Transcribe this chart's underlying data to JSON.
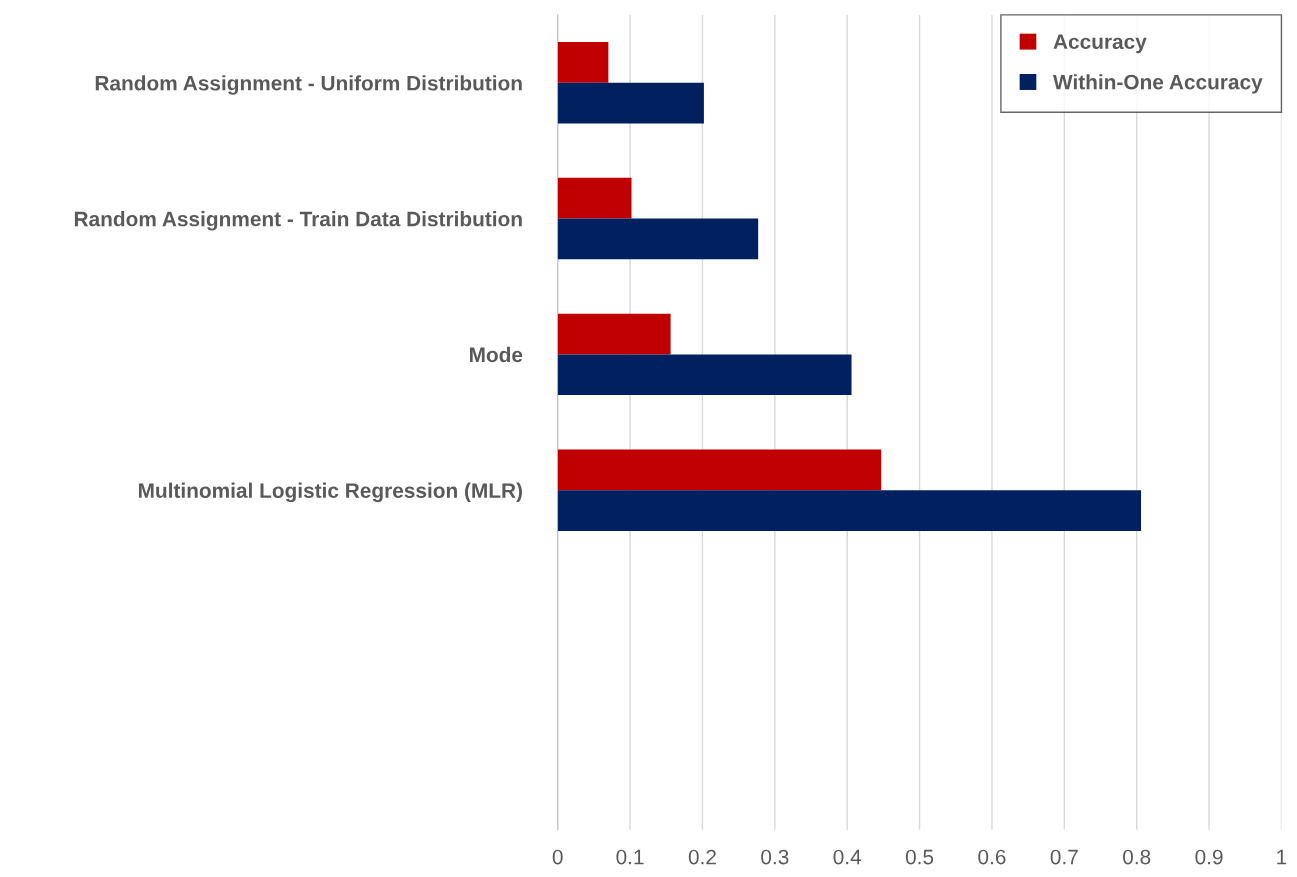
{
  "chart_data": {
    "type": "bar",
    "orientation": "horizontal",
    "categories": [
      "Random Assignment - Uniform Distribution",
      "Random Assignment - Train Data Distribution",
      "Mode",
      "Multinomial Logistic Regression (MLR)",
      null,
      null
    ],
    "series": [
      {
        "name": "Accuracy",
        "color": "#c00000",
        "values": [
          0.07,
          0.102,
          0.156,
          0.447,
          null,
          null
        ]
      },
      {
        "name": "Within-One Accuracy",
        "color": "#002060",
        "values": [
          0.202,
          0.277,
          0.406,
          0.806,
          null,
          null
        ]
      }
    ],
    "xlim": [
      0,
      1
    ],
    "xticks": [
      0,
      0.1,
      0.2,
      0.3,
      0.4,
      0.5,
      0.6,
      0.7,
      0.8,
      0.9,
      1
    ],
    "grid": "x",
    "legend": "top right"
  }
}
